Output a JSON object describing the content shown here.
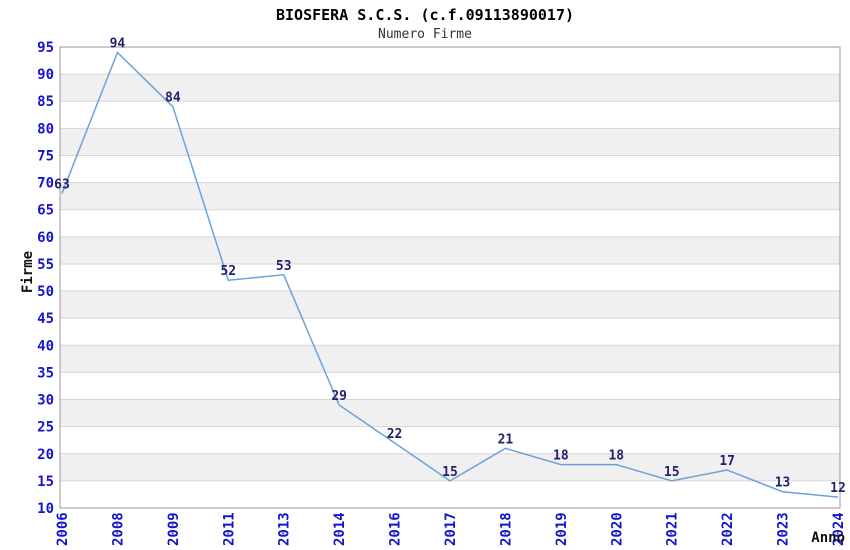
{
  "chart_data": {
    "type": "line",
    "title": "BIOSFERA S.C.S. (c.f.09113890017)",
    "subtitle": "Numero Firme",
    "xlabel": "Anno",
    "ylabel": "Firme",
    "categories": [
      "2006",
      "2008",
      "2009",
      "2011",
      "2013",
      "2014",
      "2016",
      "2017",
      "2018",
      "2019",
      "2020",
      "2021",
      "2022",
      "2023",
      "2024"
    ],
    "values": [
      63,
      94,
      84,
      52,
      53,
      29,
      22,
      15,
      21,
      18,
      18,
      15,
      17,
      13,
      12
    ],
    "ylim": [
      10,
      95
    ],
    "ytick_step": 5,
    "grid": true,
    "legend": "none",
    "colors": {
      "line": "#6aa2dd",
      "point_label": "#22226b",
      "tick_label": "#1414cc",
      "axis_title": "#111111",
      "band_even": "#ffffff",
      "band_odd": "#f0f0f0",
      "gridline": "#d6d6d6",
      "border": "#9a9a9a"
    },
    "layout_hints": {
      "first_point_plotted_value": 68,
      "x_labels_rotated": true,
      "bands_horizontal_alternating": true
    }
  }
}
